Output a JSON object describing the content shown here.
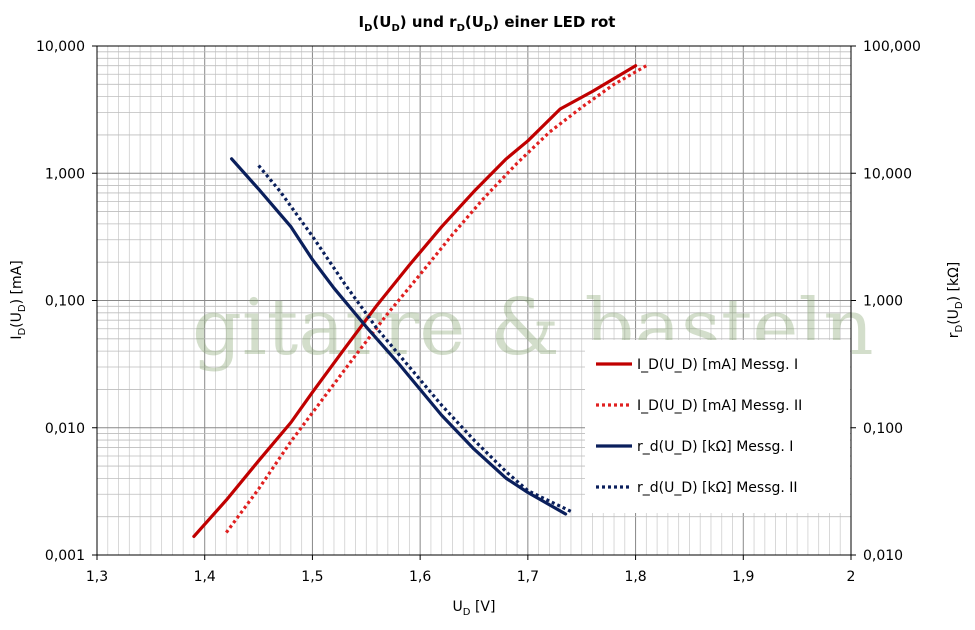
{
  "chart_data": {
    "type": "line",
    "title": {
      "pre": "I",
      "pre_sub": "D",
      "mid1": "(U",
      "mid1_sub": "D",
      "mid2": ") und r",
      "mid2_sub": "D",
      "mid3": "(U",
      "mid3_sub": "D",
      "post": ") einer LED rot"
    },
    "xlabel": {
      "main": "U",
      "sub": "D",
      "post": " [V]"
    },
    "ylabel_left": {
      "main": "I",
      "sub1": "D",
      "mid": "(U",
      "sub2": "D",
      "post": ") [mA]"
    },
    "ylabel_right": {
      "main": "r",
      "sub1": "D",
      "mid": "(U",
      "sub2": "D",
      "post": ") [kΩ]"
    },
    "xlim": [
      1.3,
      2.0
    ],
    "x_ticks": [
      "1,3",
      "1,4",
      "1,5",
      "1,6",
      "1,7",
      "1,8",
      "1,9",
      "2"
    ],
    "y_left_scale": "log",
    "y_left_lim": [
      0.001,
      10
    ],
    "y_left_ticks": [
      "0,001",
      "0,010",
      "0,100",
      "1,000",
      "10,000"
    ],
    "y_right_scale": "log",
    "y_right_lim": [
      0.01,
      100
    ],
    "y_right_ticks": [
      "0,010",
      "0,100",
      "1,000",
      "10,000",
      "100,000"
    ],
    "grid": true,
    "legend_position": "lower-right",
    "watermark": "gitarre & basteln",
    "series": [
      {
        "name": "I_D(U_D) [mA] Messg. I",
        "axis": "left",
        "color": "#c00000",
        "style": "solid",
        "x": [
          1.39,
          1.42,
          1.45,
          1.48,
          1.5,
          1.53,
          1.56,
          1.59,
          1.62,
          1.65,
          1.68,
          1.7,
          1.73,
          1.76,
          1.8
        ],
        "y": [
          0.0014,
          0.0027,
          0.0055,
          0.011,
          0.019,
          0.042,
          0.092,
          0.19,
          0.38,
          0.72,
          1.3,
          1.8,
          3.2,
          4.4,
          7.0
        ]
      },
      {
        "name": "I_D(U_D) [mA] Messg. II",
        "axis": "left",
        "color": "#e02020",
        "style": "dotted",
        "x": [
          1.42,
          1.45,
          1.48,
          1.51,
          1.54,
          1.57,
          1.6,
          1.63,
          1.66,
          1.69,
          1.72,
          1.75,
          1.78,
          1.81
        ],
        "y": [
          0.0015,
          0.0033,
          0.0078,
          0.017,
          0.037,
          0.079,
          0.16,
          0.33,
          0.65,
          1.2,
          2.1,
          3.3,
          5.0,
          7.0
        ]
      },
      {
        "name": "r_d(U_D) [kΩ] Messg. I",
        "axis": "right",
        "color": "#0a1f5c",
        "style": "solid",
        "x": [
          1.425,
          1.45,
          1.48,
          1.5,
          1.52,
          1.55,
          1.58,
          1.6,
          1.62,
          1.65,
          1.68,
          1.7,
          1.735
        ],
        "y": [
          13,
          7.5,
          3.8,
          2.1,
          1.25,
          0.62,
          0.32,
          0.2,
          0.125,
          0.068,
          0.04,
          0.031,
          0.021
        ]
      },
      {
        "name": "r_d(U_D) [kΩ] Messg. II",
        "axis": "right",
        "color": "#0a1f5c",
        "style": "dotted",
        "x": [
          1.45,
          1.47,
          1.5,
          1.53,
          1.56,
          1.59,
          1.62,
          1.65,
          1.68,
          1.7,
          1.74
        ],
        "y": [
          11.5,
          7.2,
          3.2,
          1.35,
          0.6,
          0.3,
          0.15,
          0.08,
          0.045,
          0.032,
          0.022
        ]
      }
    ]
  }
}
